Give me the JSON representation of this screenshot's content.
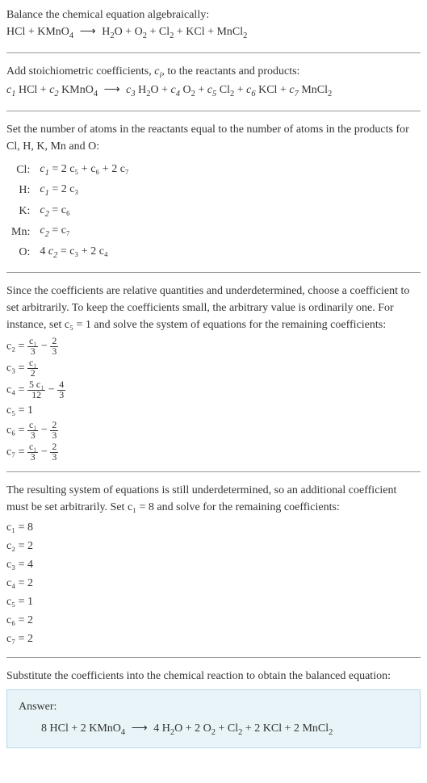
{
  "intro": {
    "line1": "Balance the chemical equation algebraically:",
    "reaction_left": "HCl + KMnO",
    "reaction_arrow": "⟶",
    "reaction_right_1": "H",
    "reaction_right_2": "O + O",
    "reaction_right_3": " + Cl",
    "reaction_right_4": " + KCl + MnCl"
  },
  "step1": {
    "text_1": "Add stoichiometric coefficients, ",
    "ci": "c",
    "ci_sub": "i",
    "text_2": ", to the reactants and products:",
    "eq_c1": "c",
    "eq_hcl": " HCl + ",
    "eq_c2": "c",
    "eq_kmno4": " KMnO",
    "eq_arrow": "⟶",
    "eq_c3": "c",
    "eq_h2o": " H",
    "eq_o": "O + ",
    "eq_c4": "c",
    "eq_o2": " O",
    "eq_plus1": " + ",
    "eq_c5": "c",
    "eq_cl2": " Cl",
    "eq_plus2": " + ",
    "eq_c6": "c",
    "eq_kcl": " KCl + ",
    "eq_c7": "c",
    "eq_mncl2": " MnCl"
  },
  "step2": {
    "text": "Set the number of atoms in the reactants equal to the number of atoms in the products for Cl, H, K, Mn and O:",
    "rows": [
      {
        "el": "Cl:",
        "lhs_c": "c",
        "lhs_i": "1",
        "rhs": " = 2 c₅ + c₆ + 2 c₇"
      },
      {
        "el": "H:",
        "lhs_c": "c",
        "lhs_i": "1",
        "rhs": " = 2 c₃"
      },
      {
        "el": "K:",
        "lhs_c": "c",
        "lhs_i": "2",
        "rhs": " = c₆"
      },
      {
        "el": "Mn:",
        "lhs_c": "c",
        "lhs_i": "2",
        "rhs": " = c₇"
      },
      {
        "el": "O:",
        "lhs_pre": "4 ",
        "lhs_c": "c",
        "lhs_i": "2",
        "rhs": " = c₃ + 2 c₄"
      }
    ]
  },
  "step3": {
    "text": "Since the coefficients are relative quantities and underdetermined, choose a coefficient to set arbitrarily. To keep the coefficients small, the arbitrary value is ordinarily one. For instance, set c₅ = 1 and solve the system of equations for the remaining coefficients:",
    "coefs": [
      {
        "lhs": "c₂ = ",
        "frac_num": "c₁",
        "frac_den": "3",
        "post": " − ",
        "frac2_num": "2",
        "frac2_den": "3"
      },
      {
        "lhs": "c₃ = ",
        "frac_num": "c₁",
        "frac_den": "2"
      },
      {
        "lhs": "c₄ = ",
        "frac_num": "5 c₁",
        "frac_den": "12",
        "post": " − ",
        "frac2_num": "4",
        "frac2_den": "3"
      },
      {
        "lhs": "c₅ = 1"
      },
      {
        "lhs": "c₆ = ",
        "frac_num": "c₁",
        "frac_den": "3",
        "post": " − ",
        "frac2_num": "2",
        "frac2_den": "3"
      },
      {
        "lhs": "c₇ = ",
        "frac_num": "c₁",
        "frac_den": "3",
        "post": " − ",
        "frac2_num": "2",
        "frac2_den": "3"
      }
    ]
  },
  "step4": {
    "text": "The resulting system of equations is still underdetermined, so an additional coefficient must be set arbitrarily. Set c₁ = 8 and solve for the remaining coefficients:",
    "coefs": [
      "c₁ = 8",
      "c₂ = 2",
      "c₃ = 4",
      "c₄ = 2",
      "c₅ = 1",
      "c₆ = 2",
      "c₇ = 2"
    ]
  },
  "step5": {
    "text": "Substitute the coefficients into the chemical reaction to obtain the balanced equation:"
  },
  "answer": {
    "label": "Answer:",
    "eq_left": "8 HCl + 2 KMnO",
    "eq_arrow": "⟶",
    "eq_r1": "4 H",
    "eq_r2": "O + 2 O",
    "eq_r3": " + Cl",
    "eq_r4": " + 2 KCl + 2 MnCl"
  },
  "colors": {
    "text": "#333333",
    "hr": "#999999",
    "answer_bg": "#e8f4f8",
    "answer_border": "#b8d8e8"
  }
}
